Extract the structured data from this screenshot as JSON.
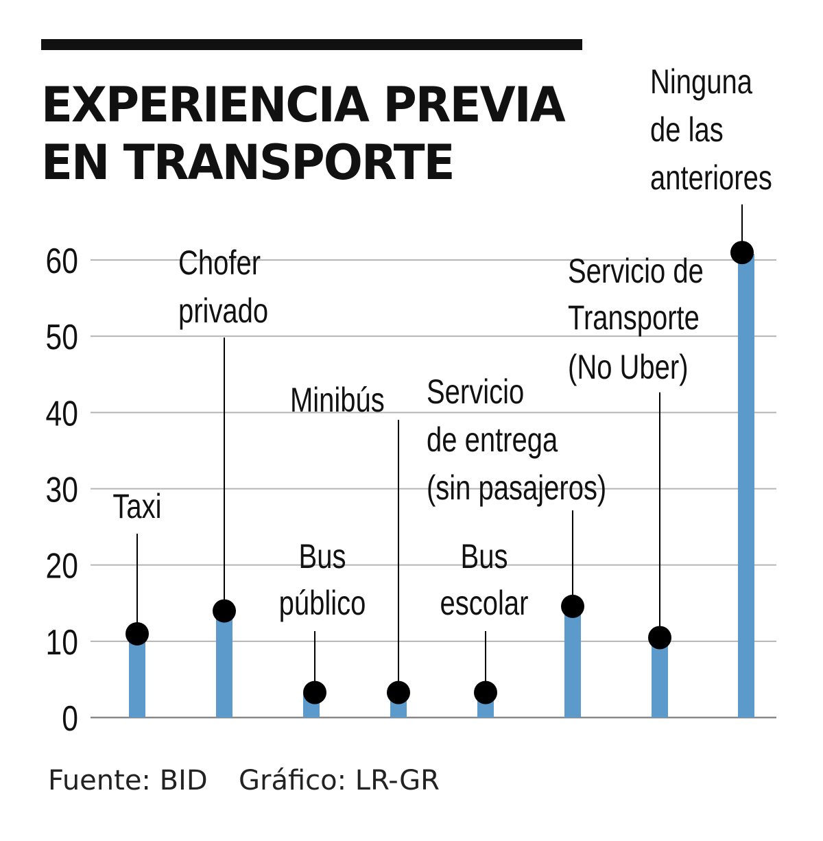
{
  "header": {
    "title_line1": "EXPERIENCIA PREVIA",
    "title_line2": "EN TRANSPORTE"
  },
  "footer": {
    "source": "Fuente: BID",
    "credit": "Gráfico: LR-GR"
  },
  "colors": {
    "bar": "#5B9ACB",
    "marker": "#000000",
    "grid": "#B5B5B5",
    "axis": "#888888",
    "text": "#111111"
  },
  "chart_data": {
    "type": "bar",
    "title": "EXPERIENCIA PREVIA EN TRANSPORTE",
    "xlabel": "",
    "ylabel": "",
    "ylim": [
      0,
      60
    ],
    "yticks": [
      0,
      10,
      20,
      30,
      40,
      50,
      60
    ],
    "grid": true,
    "categories": [
      "Taxi",
      "Chofer privado",
      "Bus público",
      "Minibús",
      "Bus escolar",
      "Servicio de entrega (sin pasajeros)",
      "Servicio de Transporte (No Uber)",
      "Ninguna de las anteriores"
    ],
    "label_lines": [
      [
        "Taxi"
      ],
      [
        "Chofer",
        "privado"
      ],
      [
        "Bus",
        "público"
      ],
      [
        "Minibús"
      ],
      [
        "Bus",
        "escolar"
      ],
      [
        "Servicio",
        "de entrega",
        "(sin pasajeros)"
      ],
      [
        "Servicio de",
        "Transporte",
        "(No Uber)"
      ],
      [
        "Ninguna",
        "de las",
        "anteriores"
      ]
    ],
    "values": [
      10.8,
      13.8,
      3.1,
      3.1,
      3.1,
      14.4,
      10.3,
      60.8
    ]
  }
}
